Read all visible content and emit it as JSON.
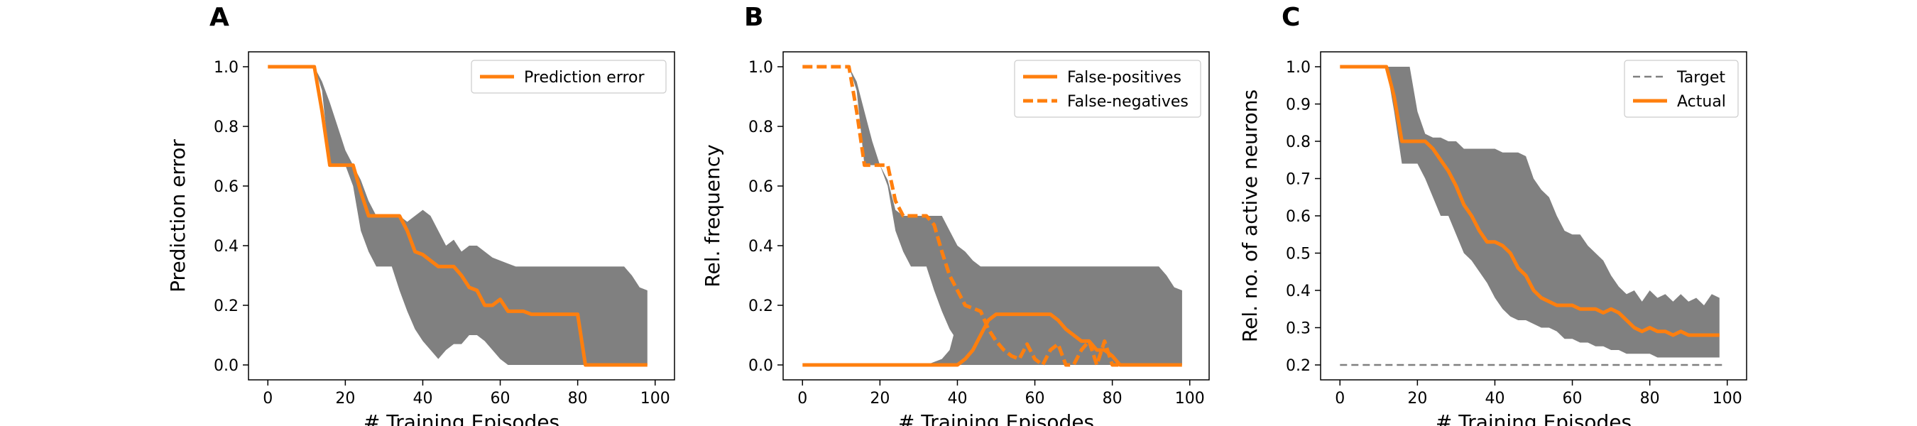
{
  "colors": {
    "series": "#ff7f0e",
    "band": "#808080",
    "target": "#808080",
    "axis": "#000000"
  },
  "chart_data": [
    {
      "panel": "A",
      "type": "line",
      "xlabel": "# Training Episodes",
      "ylabel": "Prediction error",
      "xlim": [
        -5,
        105
      ],
      "ylim": [
        -0.05,
        1.05
      ],
      "xticks": [
        0,
        20,
        40,
        60,
        80,
        100
      ],
      "xtick_labels": [
        "0",
        "20",
        "40",
        "60",
        "80",
        "100"
      ],
      "yticks": [
        0.0,
        0.2,
        0.4,
        0.6,
        0.8,
        1.0
      ],
      "ytick_labels": [
        "0.0",
        "0.2",
        "0.4",
        "0.6",
        "0.8",
        "1.0"
      ],
      "legend_position": "top-right",
      "bands": [
        {
          "x": [
            0,
            12,
            14,
            16,
            18,
            20,
            22,
            24,
            26,
            28,
            30,
            32,
            34,
            36,
            38,
            40,
            42,
            44,
            46,
            48,
            50,
            52,
            54,
            56,
            58,
            60,
            62,
            64,
            66,
            68,
            70,
            72,
            74,
            76,
            78,
            80,
            82,
            84,
            86,
            88,
            90,
            92,
            94,
            96,
            98
          ],
          "upper": [
            1.0,
            1.0,
            0.95,
            0.88,
            0.8,
            0.72,
            0.67,
            0.62,
            0.55,
            0.5,
            0.5,
            0.5,
            0.5,
            0.48,
            0.5,
            0.52,
            0.5,
            0.45,
            0.4,
            0.42,
            0.38,
            0.4,
            0.4,
            0.38,
            0.36,
            0.35,
            0.34,
            0.33,
            0.33,
            0.33,
            0.33,
            0.33,
            0.33,
            0.33,
            0.33,
            0.33,
            0.33,
            0.33,
            0.33,
            0.33,
            0.33,
            0.33,
            0.3,
            0.26,
            0.25
          ],
          "lower": [
            1.0,
            1.0,
            0.92,
            0.67,
            0.67,
            0.67,
            0.6,
            0.45,
            0.38,
            0.33,
            0.33,
            0.33,
            0.25,
            0.18,
            0.12,
            0.08,
            0.05,
            0.02,
            0.05,
            0.07,
            0.07,
            0.1,
            0.1,
            0.08,
            0.05,
            0.02,
            0.0,
            0.0,
            0.0,
            0.0,
            0.0,
            0.0,
            0.0,
            0.0,
            0.0,
            0.0,
            0.0,
            0.0,
            0.0,
            0.0,
            0.0,
            0.0,
            0.0,
            0.0,
            0.0
          ]
        }
      ],
      "series": [
        {
          "name": "Prediction error",
          "style": "solid",
          "x": [
            0,
            12,
            14,
            16,
            18,
            20,
            22,
            24,
            26,
            28,
            30,
            32,
            34,
            36,
            38,
            40,
            42,
            44,
            46,
            48,
            50,
            52,
            54,
            56,
            58,
            60,
            62,
            64,
            66,
            68,
            70,
            72,
            74,
            76,
            78,
            80,
            82,
            84,
            86,
            88,
            90,
            92,
            94,
            96,
            98
          ],
          "y": [
            1.0,
            1.0,
            0.85,
            0.67,
            0.67,
            0.67,
            0.67,
            0.58,
            0.5,
            0.5,
            0.5,
            0.5,
            0.5,
            0.45,
            0.38,
            0.37,
            0.35,
            0.33,
            0.33,
            0.33,
            0.3,
            0.26,
            0.25,
            0.2,
            0.2,
            0.22,
            0.18,
            0.18,
            0.18,
            0.17,
            0.17,
            0.17,
            0.17,
            0.17,
            0.17,
            0.17,
            0.0,
            0.0,
            0.0,
            0.0,
            0.0,
            0.0,
            0.0,
            0.0,
            0.0
          ]
        }
      ]
    },
    {
      "panel": "B",
      "type": "line",
      "xlabel": "# Training Episodes",
      "ylabel": "Rel. frequency",
      "xlim": [
        -5,
        105
      ],
      "ylim": [
        -0.05,
        1.05
      ],
      "xticks": [
        0,
        20,
        40,
        60,
        80,
        100
      ],
      "xtick_labels": [
        "0",
        "20",
        "40",
        "60",
        "80",
        "100"
      ],
      "yticks": [
        0.0,
        0.2,
        0.4,
        0.6,
        0.8,
        1.0
      ],
      "ytick_labels": [
        "0.0",
        "0.2",
        "0.4",
        "0.6",
        "0.8",
        "1.0"
      ],
      "legend_position": "top-right",
      "bands": [
        {
          "x": [
            0,
            12,
            14,
            16,
            18,
            20,
            22,
            24,
            26,
            28,
            30,
            32,
            34,
            36,
            38,
            40,
            42,
            44,
            46,
            48,
            50,
            52,
            54,
            56,
            58,
            60,
            62,
            64,
            66,
            68,
            70,
            72,
            74,
            76,
            78,
            80,
            82,
            84,
            86,
            88,
            90,
            92,
            94,
            96,
            98
          ],
          "upper": [
            1.0,
            1.0,
            0.95,
            0.85,
            0.75,
            0.67,
            0.62,
            0.52,
            0.5,
            0.5,
            0.5,
            0.5,
            0.5,
            0.5,
            0.45,
            0.4,
            0.38,
            0.35,
            0.33,
            0.33,
            0.33,
            0.33,
            0.33,
            0.33,
            0.33,
            0.33,
            0.33,
            0.33,
            0.33,
            0.33,
            0.33,
            0.33,
            0.33,
            0.33,
            0.33,
            0.33,
            0.33,
            0.33,
            0.33,
            0.33,
            0.33,
            0.33,
            0.3,
            0.26,
            0.25
          ],
          "lower": [
            1.0,
            1.0,
            0.92,
            0.67,
            0.67,
            0.67,
            0.6,
            0.45,
            0.38,
            0.33,
            0.33,
            0.33,
            0.25,
            0.18,
            0.12,
            0.08,
            0.05,
            0.02,
            0.02,
            0.02,
            0.0,
            0.0,
            0.0,
            0.0,
            0.0,
            0.0,
            0.0,
            0.0,
            0.0,
            0.0,
            0.0,
            0.0,
            0.0,
            0.0,
            0.0,
            0.0,
            0.0,
            0.0,
            0.0,
            0.0,
            0.0,
            0.0,
            0.0,
            0.0,
            0.0
          ]
        },
        {
          "x": [
            0,
            30,
            32,
            34,
            36,
            38,
            40,
            42,
            44,
            46,
            48,
            50,
            52,
            54,
            56,
            58,
            60,
            62,
            64,
            66,
            68,
            70,
            72,
            74,
            76,
            78,
            80,
            82,
            84,
            86,
            88,
            90,
            92,
            94,
            96,
            98
          ],
          "upper": [
            0.0,
            0.0,
            0.0,
            0.01,
            0.02,
            0.05,
            0.15,
            0.28,
            0.33,
            0.33,
            0.33,
            0.33,
            0.33,
            0.33,
            0.33,
            0.33,
            0.33,
            0.33,
            0.33,
            0.33,
            0.33,
            0.33,
            0.33,
            0.33,
            0.33,
            0.33,
            0.33,
            0.33,
            0.33,
            0.33,
            0.33,
            0.33,
            0.33,
            0.3,
            0.26,
            0.25
          ],
          "lower": [
            0.0,
            0.0,
            0.0,
            0.0,
            0.0,
            0.0,
            0.0,
            0.0,
            0.0,
            0.0,
            0.0,
            0.0,
            0.0,
            0.0,
            0.0,
            0.0,
            0.0,
            0.0,
            0.0,
            0.0,
            0.0,
            0.0,
            0.0,
            0.0,
            0.0,
            0.0,
            0.0,
            0.0,
            0.0,
            0.0,
            0.0,
            0.0,
            0.0,
            0.0,
            0.0,
            0.0
          ]
        }
      ],
      "series": [
        {
          "name": "False-positives",
          "style": "solid",
          "x": [
            0,
            32,
            34,
            36,
            38,
            40,
            42,
            44,
            46,
            48,
            50,
            52,
            54,
            56,
            58,
            60,
            62,
            64,
            66,
            68,
            70,
            72,
            74,
            76,
            78,
            80,
            82,
            84,
            86,
            88,
            90,
            92,
            94,
            96,
            98
          ],
          "y": [
            0.0,
            0.0,
            0.0,
            0.0,
            0.0,
            0.0,
            0.02,
            0.05,
            0.1,
            0.15,
            0.17,
            0.17,
            0.17,
            0.17,
            0.17,
            0.17,
            0.17,
            0.17,
            0.15,
            0.12,
            0.1,
            0.08,
            0.08,
            0.05,
            0.05,
            0.03,
            0.0,
            0.0,
            0.0,
            0.0,
            0.0,
            0.0,
            0.0,
            0.0,
            0.0
          ]
        },
        {
          "name": "False-negatives",
          "style": "dashed",
          "x": [
            0,
            12,
            14,
            16,
            18,
            20,
            22,
            24,
            26,
            28,
            30,
            32,
            34,
            36,
            38,
            40,
            42,
            44,
            46,
            48,
            50,
            52,
            54,
            56,
            58,
            60,
            62,
            64,
            66,
            68,
            70,
            72,
            74,
            76,
            78,
            80,
            82
          ],
          "y": [
            1.0,
            1.0,
            0.85,
            0.67,
            0.67,
            0.67,
            0.67,
            0.55,
            0.5,
            0.5,
            0.5,
            0.5,
            0.47,
            0.38,
            0.3,
            0.25,
            0.2,
            0.19,
            0.18,
            0.12,
            0.08,
            0.05,
            0.03,
            0.02,
            0.07,
            0.02,
            0.0,
            0.05,
            0.07,
            0.0,
            0.0,
            0.05,
            0.08,
            0.0,
            0.08,
            0.0,
            0.0
          ]
        }
      ]
    },
    {
      "panel": "C",
      "type": "line",
      "xlabel": "# Training Episodes",
      "ylabel": "Rel. no. of active neurons",
      "xlim": [
        -5,
        105
      ],
      "ylim": [
        0.16,
        1.04
      ],
      "xticks": [
        0,
        20,
        40,
        60,
        80,
        100
      ],
      "xtick_labels": [
        "0",
        "20",
        "40",
        "60",
        "80",
        "100"
      ],
      "yticks": [
        0.2,
        0.3,
        0.4,
        0.5,
        0.6,
        0.7,
        0.8,
        0.9,
        1.0
      ],
      "ytick_labels": [
        "0.2",
        "0.3",
        "0.4",
        "0.5",
        "0.6",
        "0.7",
        "0.8",
        "0.9",
        "1.0"
      ],
      "legend_position": "top-right",
      "bands": [
        {
          "x": [
            0,
            12,
            14,
            16,
            18,
            20,
            22,
            24,
            26,
            28,
            30,
            32,
            34,
            36,
            38,
            40,
            42,
            44,
            46,
            48,
            50,
            52,
            54,
            56,
            58,
            60,
            62,
            64,
            66,
            68,
            70,
            72,
            74,
            76,
            78,
            80,
            82,
            84,
            86,
            88,
            90,
            92,
            94,
            96,
            98
          ],
          "upper": [
            1.0,
            1.0,
            1.0,
            1.0,
            1.0,
            0.88,
            0.82,
            0.81,
            0.81,
            0.8,
            0.8,
            0.78,
            0.78,
            0.78,
            0.78,
            0.78,
            0.77,
            0.77,
            0.77,
            0.76,
            0.7,
            0.67,
            0.65,
            0.6,
            0.56,
            0.55,
            0.55,
            0.52,
            0.5,
            0.48,
            0.44,
            0.41,
            0.39,
            0.4,
            0.37,
            0.4,
            0.38,
            0.39,
            0.37,
            0.39,
            0.37,
            0.38,
            0.36,
            0.39,
            0.38
          ],
          "lower": [
            1.0,
            1.0,
            0.88,
            0.74,
            0.74,
            0.74,
            0.7,
            0.65,
            0.6,
            0.6,
            0.55,
            0.5,
            0.48,
            0.45,
            0.42,
            0.38,
            0.35,
            0.33,
            0.32,
            0.32,
            0.31,
            0.3,
            0.3,
            0.29,
            0.27,
            0.27,
            0.26,
            0.26,
            0.25,
            0.25,
            0.24,
            0.24,
            0.23,
            0.23,
            0.23,
            0.23,
            0.22,
            0.22,
            0.22,
            0.22,
            0.22,
            0.22,
            0.22,
            0.22,
            0.22
          ]
        }
      ],
      "series": [
        {
          "name": "Target",
          "style": "dashed-thin",
          "x": [
            0,
            99
          ],
          "y": [
            0.2,
            0.2
          ]
        },
        {
          "name": "Actual",
          "style": "solid",
          "x": [
            0,
            12,
            14,
            16,
            18,
            20,
            22,
            24,
            26,
            28,
            30,
            32,
            34,
            36,
            38,
            40,
            42,
            44,
            46,
            48,
            50,
            52,
            54,
            56,
            58,
            60,
            62,
            64,
            66,
            68,
            70,
            72,
            74,
            76,
            78,
            80,
            82,
            84,
            86,
            88,
            90,
            92,
            94,
            96,
            98
          ],
          "y": [
            1.0,
            1.0,
            0.92,
            0.8,
            0.8,
            0.8,
            0.8,
            0.78,
            0.75,
            0.72,
            0.68,
            0.63,
            0.6,
            0.56,
            0.53,
            0.53,
            0.52,
            0.5,
            0.46,
            0.44,
            0.4,
            0.38,
            0.37,
            0.36,
            0.36,
            0.36,
            0.35,
            0.35,
            0.35,
            0.34,
            0.35,
            0.34,
            0.32,
            0.3,
            0.29,
            0.3,
            0.29,
            0.29,
            0.28,
            0.29,
            0.28,
            0.28,
            0.28,
            0.28,
            0.28
          ]
        }
      ]
    }
  ]
}
